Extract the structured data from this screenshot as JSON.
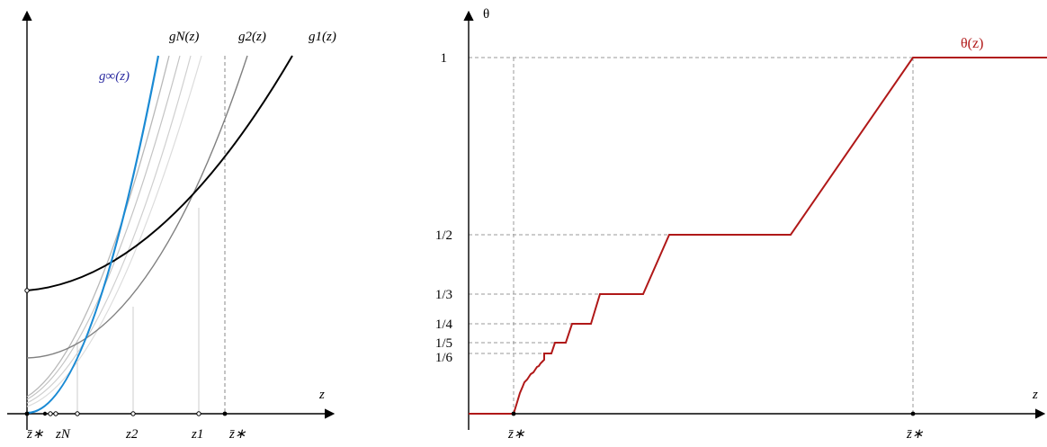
{
  "left_panel": {
    "labels": {
      "g_infinity": "g∞(z)",
      "g_N": "gN(z)",
      "g_2": "g2(z)",
      "g_1": "g1(z)",
      "axis_z": "z"
    },
    "ticks": {
      "z_bar_lower": "z̄∗",
      "z_N": "zN",
      "z_2": "z2",
      "z_1": "z1",
      "z_bar_upper": "z̄∗"
    },
    "colors": {
      "g_infinity": "#1a8ad4",
      "g_1": "#000000",
      "g_2": "#808080",
      "g_N": "#b8b8b8",
      "label_g_infinity": "#2a2aa0"
    }
  },
  "right_panel": {
    "labels": {
      "curve": "θ(z)",
      "axis_y": "θ",
      "axis_x": "z"
    },
    "y_ticks": [
      "1",
      "1/2",
      "1/3",
      "1/4",
      "1/5",
      "1/6"
    ],
    "x_ticks": {
      "z_bar_lower": "z̄∗",
      "z_bar_upper": "z̄∗"
    },
    "colors": {
      "curve": "#b01818"
    }
  }
}
